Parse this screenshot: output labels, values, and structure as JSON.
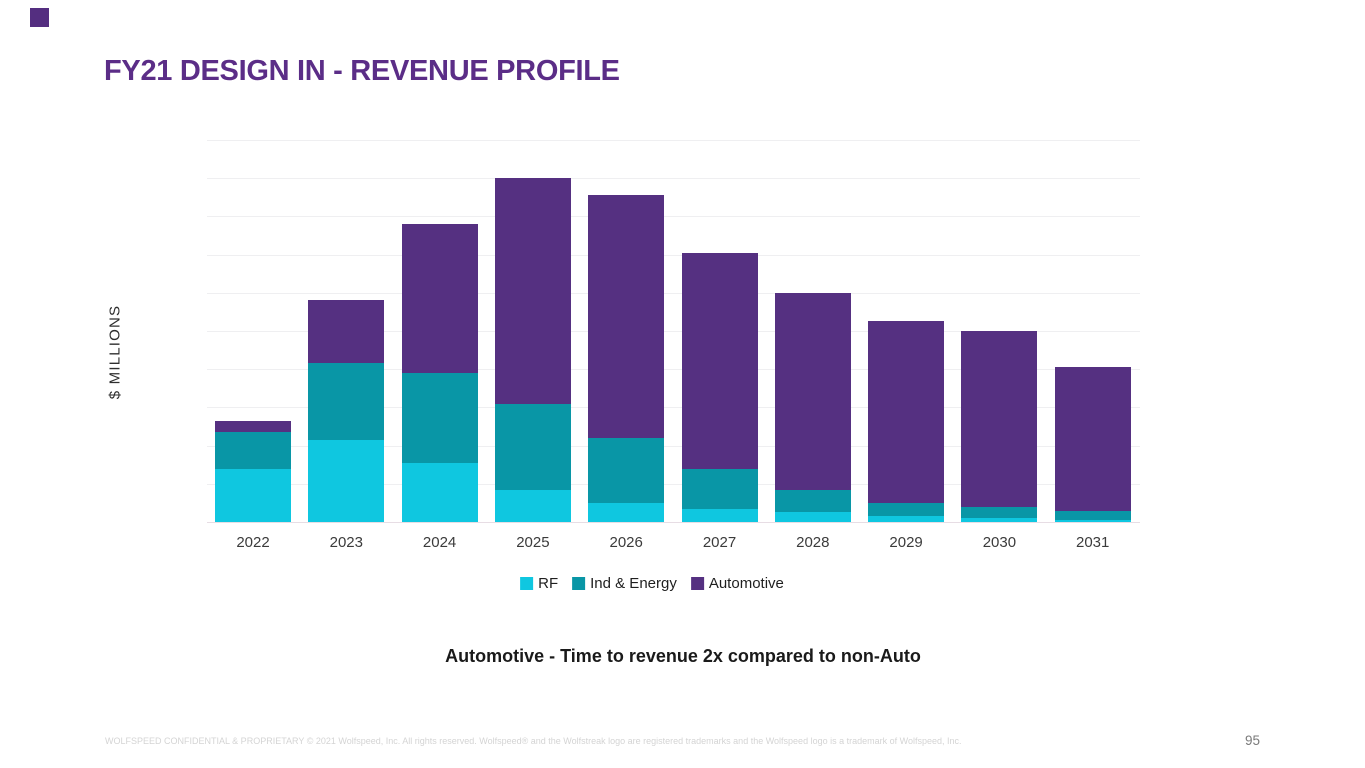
{
  "slide": {
    "title": "FY21 DESIGN IN - REVENUE PROFILE",
    "caption": "Automotive - Time to revenue 2x compared to non-Auto",
    "footer": "WOLFSPEED CONFIDENTIAL & PROPRIETARY © 2021 Wolfspeed, Inc. All rights reserved. Wolfspeed® and the Wolfstreak logo are registered trademarks and the Wolfspeed logo is a trademark of Wolfspeed, Inc.",
    "page_number": "95"
  },
  "colors": {
    "title": "#5b2d87",
    "marker_square": "#542e80",
    "rf": "#0fc7e0",
    "ind_energy": "#0996a6",
    "automotive": "#553081",
    "gridline": "#efeff1",
    "axis_line": "#e7dde4",
    "footer_text": "#d4d4d4",
    "page_number": "#7a7a7a"
  },
  "chart_data": {
    "type": "bar",
    "stacked": true,
    "title": "",
    "xlabel": "",
    "ylabel": "$ MILLIONS",
    "units_note": "y-axis has no tick labels; values estimated in relative units where the top gridline = 100",
    "ylim": [
      0,
      100
    ],
    "gridline_step": 10,
    "grid": "horizontal only",
    "legend_position": "bottom",
    "categories": [
      "2022",
      "2023",
      "2024",
      "2025",
      "2026",
      "2027",
      "2028",
      "2029",
      "2030",
      "2031"
    ],
    "series": [
      {
        "name": "RF",
        "color": "#0fc7e0",
        "values": [
          14,
          21.5,
          15.5,
          8.5,
          5,
          3.5,
          2.5,
          1.5,
          1,
          0.5
        ]
      },
      {
        "name": "Ind & Energy",
        "color": "#0996a6",
        "values": [
          9.5,
          20,
          23.5,
          22.5,
          17,
          10.5,
          6,
          3.5,
          3,
          2.5
        ]
      },
      {
        "name": "Automotive",
        "color": "#553081",
        "values": [
          3,
          16.5,
          39,
          59,
          63.5,
          56.5,
          51.5,
          47.5,
          46,
          37.5
        ]
      }
    ],
    "totals": [
      26.5,
      58,
      78,
      90,
      85.5,
      70.5,
      60,
      52.5,
      50,
      40.5
    ]
  }
}
